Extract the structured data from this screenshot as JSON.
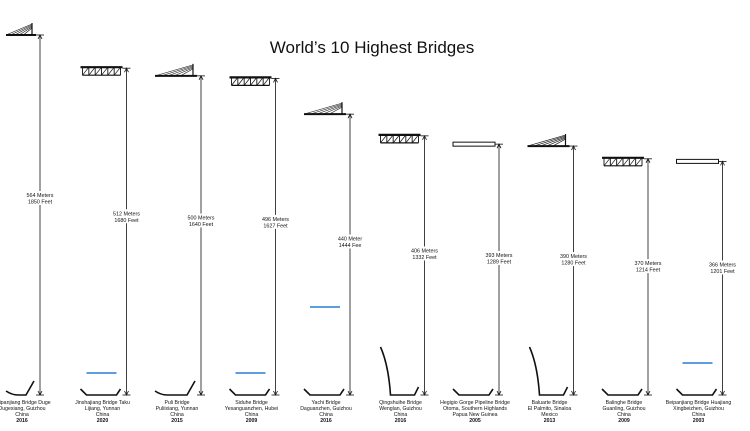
{
  "chart_data": {
    "type": "bar",
    "title": "World’s 10 Highest Bridges",
    "units": [
      "Meters",
      "Feet"
    ],
    "bridges": [
      {
        "name": "Beipanjiang Bridge Duge",
        "location": "Dugexiang, Guizhou",
        "country": "China",
        "year": "2016",
        "meters": 564,
        "feet": 1850,
        "meters_text": "564 Meters",
        "feet_text": "1850 Feet",
        "deck": "cable",
        "water": false
      },
      {
        "name": "Jinshajiang Bridge Taku",
        "location": "Lijiang, Yunnan",
        "country": "China",
        "year": "2020",
        "meters": 512,
        "feet": 1680,
        "meters_text": "512 Meters",
        "feet_text": "1680 Feet",
        "deck": "truss",
        "water": true
      },
      {
        "name": "Puli Bridge",
        "location": "Puliixiang, Yunnan",
        "country": "China",
        "year": "2015",
        "meters": 500,
        "feet": 1640,
        "meters_text": "500 Meters",
        "feet_text": "1640 Feet",
        "deck": "cable",
        "water": false
      },
      {
        "name": "Siduhe Bridge",
        "location": "Yesanguanzhen, Hubei",
        "country": "China",
        "year": "2009",
        "meters": 496,
        "feet": 1627,
        "meters_text": "496 Meters",
        "feet_text": "1627 Feet",
        "deck": "truss",
        "water": true
      },
      {
        "name": "Yachi Bridge",
        "location": "Daguanzhen, Guizhou",
        "country": "China",
        "year": "2016",
        "meters": 440,
        "feet": 1444,
        "meters_text": "440 Meter",
        "feet_text": "1444 Fee",
        "deck": "cable",
        "water": true
      },
      {
        "name": "Qingshuihe Bridge",
        "location": "Wenglan, Guizhou",
        "country": "China",
        "year": "2016",
        "meters": 406,
        "feet": 1332,
        "meters_text": "406 Meters",
        "feet_text": "1332 Feet",
        "deck": "truss",
        "water": false
      },
      {
        "name": "Hegigio Gorge Pipeline Bridge",
        "location": "Otoma, Southern Highlands",
        "country": "Papua New Guinea",
        "year": "2005",
        "meters": 393,
        "feet": 1289,
        "meters_text": "393 Meters",
        "feet_text": "1289 Feet",
        "deck": "beam",
        "water": false
      },
      {
        "name": "Baluarte Bridge",
        "location": "El Palmito, Sinaloa",
        "country": "Mexico",
        "year": "2013",
        "meters": 390,
        "feet": 1280,
        "meters_text": "390 Meters",
        "feet_text": "1280 Feet",
        "deck": "cable",
        "water": false
      },
      {
        "name": "Balinghe Bridge",
        "location": "Guanling, Guizhou",
        "country": "China",
        "year": "2009",
        "meters": 370,
        "feet": 1214,
        "meters_text": "370 Meters",
        "feet_text": "1214 Feet",
        "deck": "truss",
        "water": false
      },
      {
        "name": "Beipanjiang Bridge Huajiang",
        "location": "Xingbeizhen, Guizhou",
        "country": "China",
        "year": "2003",
        "meters": 366,
        "feet": 1201,
        "meters_text": "366 Meters",
        "feet_text": "1201 Feet",
        "deck": "beam",
        "water": true
      }
    ],
    "colors": {
      "line": "#111111",
      "water": "#2a7fd4",
      "background": "#ffffff"
    }
  }
}
